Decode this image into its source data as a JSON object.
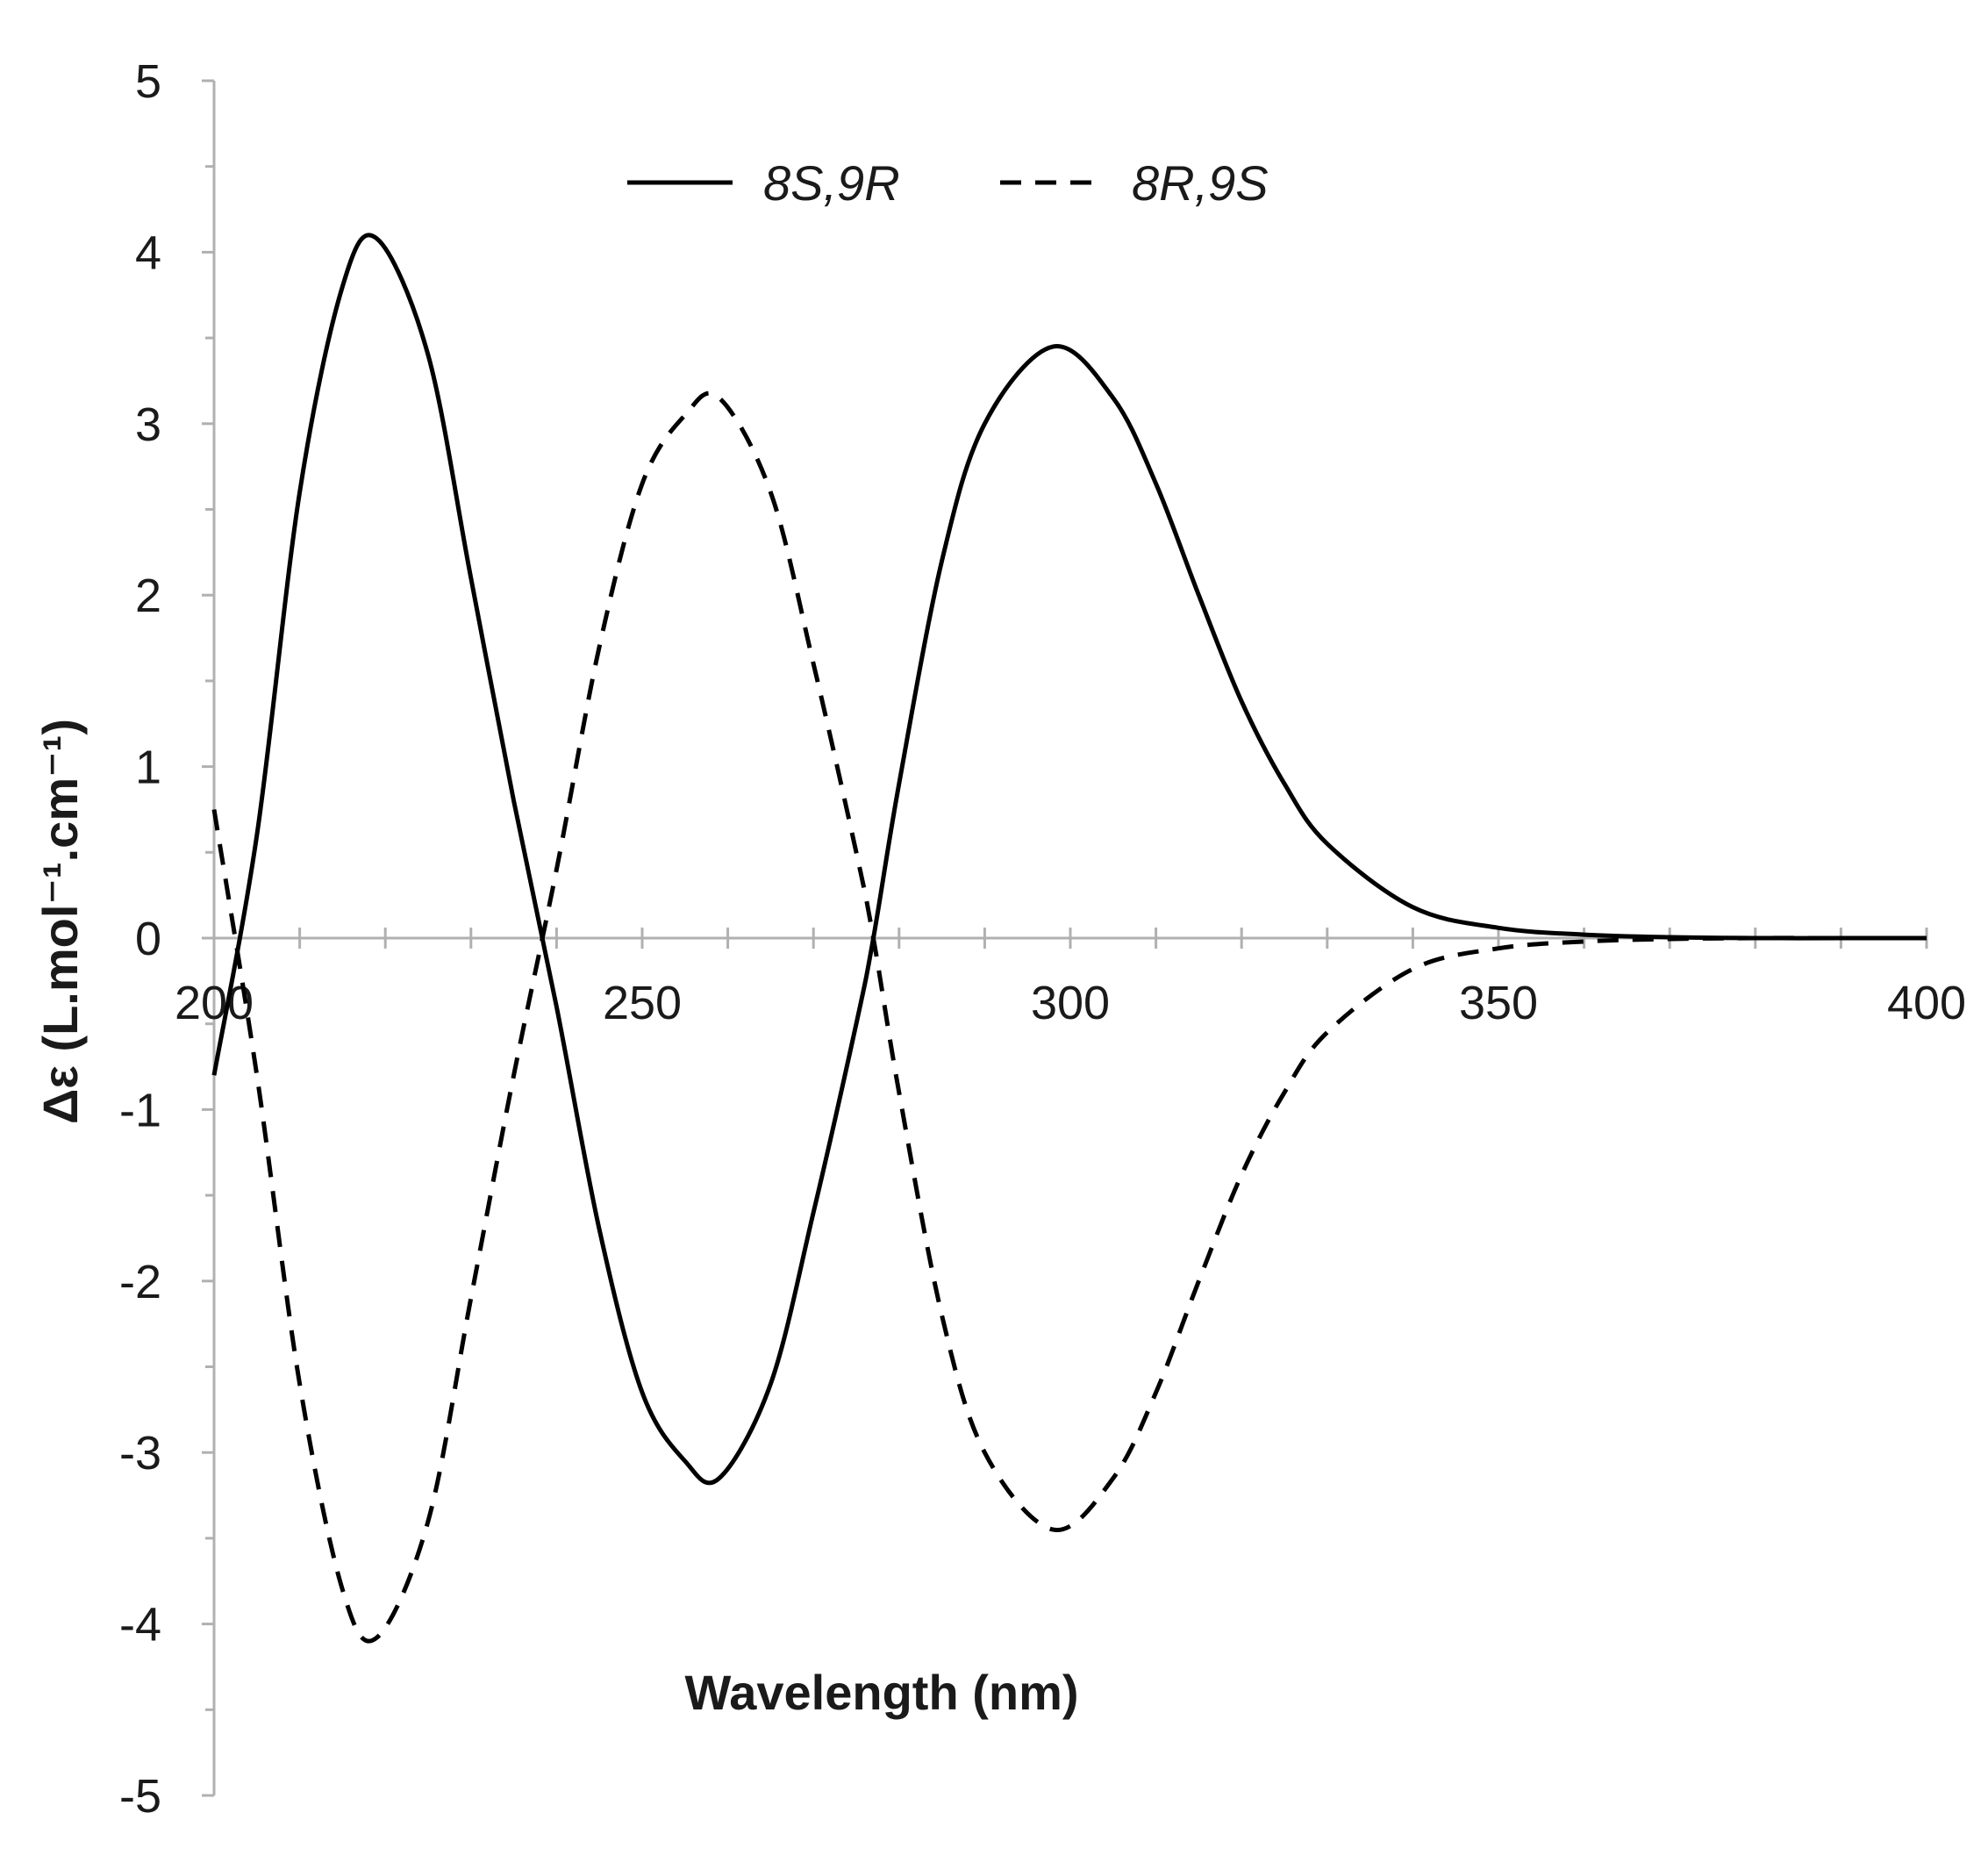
{
  "chart_data": {
    "type": "line",
    "xlabel": "Wavelength (nm)",
    "ylabel": "Δε (L.mol⁻¹.cm⁻¹)",
    "xlim": [
      200,
      400
    ],
    "ylim": [
      -5,
      5
    ],
    "x_ticks": [
      200,
      250,
      300,
      350,
      400
    ],
    "y_ticks": [
      5,
      4,
      3,
      2,
      1,
      0,
      -1,
      -2,
      -3,
      -4,
      -5
    ],
    "x_tick_labels": [
      "200",
      "250",
      "300",
      "350",
      "400"
    ],
    "y_tick_labels": [
      "5",
      "4",
      "3",
      "2",
      "1",
      "0",
      "-1",
      "-2",
      "-3",
      "-4",
      "-5"
    ],
    "grid": false,
    "legend_position": "top-center",
    "x": [
      200,
      205,
      210,
      215,
      219,
      225,
      230,
      235,
      240,
      245,
      250,
      255,
      259,
      265,
      270,
      275,
      277,
      280,
      285,
      290,
      298,
      305,
      310,
      315,
      320,
      325,
      330,
      340,
      350,
      360,
      370,
      380,
      390,
      400
    ],
    "series": [
      {
        "name": "8S,9R",
        "style": "solid",
        "color": "#000000",
        "values": [
          -0.8,
          0.6,
          2.6,
          3.8,
          4.08,
          3.4,
          2.1,
          0.8,
          -0.4,
          -1.7,
          -2.65,
          -3.05,
          -3.15,
          -2.6,
          -1.6,
          -0.5,
          0.0,
          0.9,
          2.2,
          3.0,
          3.45,
          3.15,
          2.65,
          2.0,
          1.38,
          0.9,
          0.55,
          0.18,
          0.06,
          0.02,
          0.005,
          0.0,
          0.0,
          0.0
        ]
      },
      {
        "name": "8R,9S",
        "style": "dashed",
        "color": "#000000",
        "values": [
          0.75,
          -0.8,
          -2.6,
          -3.8,
          -4.08,
          -3.4,
          -2.1,
          -0.8,
          0.4,
          1.7,
          2.65,
          3.05,
          3.15,
          2.6,
          1.6,
          0.5,
          0.0,
          -0.9,
          -2.2,
          -3.0,
          -3.45,
          -3.15,
          -2.65,
          -2.0,
          -1.38,
          -0.9,
          -0.55,
          -0.18,
          -0.06,
          -0.02,
          -0.005,
          0.0,
          0.0,
          0.0
        ]
      }
    ]
  }
}
